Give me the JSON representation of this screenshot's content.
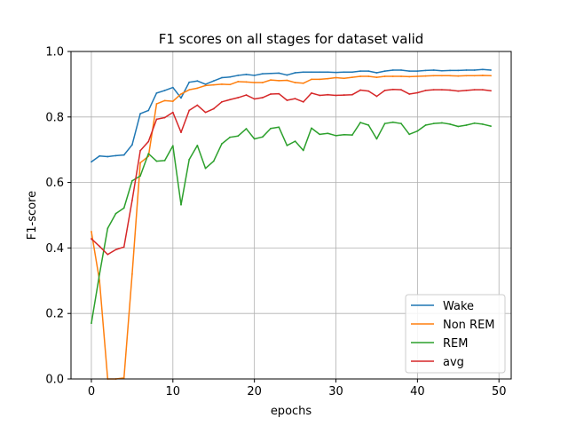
{
  "chart_data": {
    "type": "line",
    "title": "F1 scores on all stages for dataset valid",
    "xlabel": "epochs",
    "ylabel": "F1-score",
    "xlim": [
      -2.5,
      51.5
    ],
    "ylim": [
      0.0,
      1.0
    ],
    "xticks": [
      0,
      10,
      20,
      30,
      40,
      50
    ],
    "xtick_labels": [
      "0",
      "10",
      "20",
      "30",
      "40",
      "50"
    ],
    "yticks": [
      0.0,
      0.2,
      0.4,
      0.6,
      0.8,
      1.0
    ],
    "ytick_labels": [
      "0.0",
      "0.2",
      "0.4",
      "0.6",
      "0.8",
      "1.0"
    ],
    "grid": true,
    "legend_position": "lower-right",
    "x": [
      0,
      1,
      2,
      3,
      4,
      5,
      6,
      7,
      8,
      9,
      10,
      11,
      12,
      13,
      14,
      15,
      16,
      17,
      18,
      19,
      20,
      21,
      22,
      23,
      24,
      25,
      26,
      27,
      28,
      29,
      30,
      31,
      32,
      33,
      34,
      35,
      36,
      37,
      38,
      39,
      40,
      41,
      42,
      43,
      44,
      45,
      46,
      47,
      48,
      49
    ],
    "series": [
      {
        "name": "Wake",
        "color": "#1f77b4",
        "values": [
          0.663,
          0.681,
          0.679,
          0.682,
          0.684,
          0.715,
          0.81,
          0.82,
          0.873,
          0.881,
          0.89,
          0.858,
          0.906,
          0.91,
          0.9,
          0.91,
          0.92,
          0.922,
          0.927,
          0.93,
          0.927,
          0.932,
          0.933,
          0.934,
          0.928,
          0.935,
          0.937,
          0.937,
          0.937,
          0.937,
          0.936,
          0.937,
          0.937,
          0.94,
          0.94,
          0.935,
          0.94,
          0.943,
          0.943,
          0.94,
          0.94,
          0.942,
          0.943,
          0.941,
          0.942,
          0.942,
          0.943,
          0.943,
          0.945,
          0.943
        ]
      },
      {
        "name": "Non REM",
        "color": "#ff7f0e",
        "values": [
          0.45,
          0.3,
          0.0,
          0.0,
          0.003,
          0.32,
          0.66,
          0.68,
          0.84,
          0.85,
          0.848,
          0.87,
          0.883,
          0.888,
          0.896,
          0.898,
          0.9,
          0.899,
          0.908,
          0.907,
          0.905,
          0.905,
          0.913,
          0.911,
          0.912,
          0.905,
          0.903,
          0.915,
          0.915,
          0.917,
          0.92,
          0.918,
          0.921,
          0.924,
          0.924,
          0.921,
          0.924,
          0.924,
          0.924,
          0.923,
          0.924,
          0.925,
          0.926,
          0.926,
          0.926,
          0.925,
          0.926,
          0.926,
          0.927,
          0.926
        ]
      },
      {
        "name": "REM",
        "color": "#2ca02c",
        "values": [
          0.17,
          0.32,
          0.46,
          0.505,
          0.522,
          0.605,
          0.62,
          0.688,
          0.665,
          0.667,
          0.712,
          0.532,
          0.67,
          0.713,
          0.643,
          0.665,
          0.718,
          0.738,
          0.742,
          0.764,
          0.733,
          0.739,
          0.765,
          0.769,
          0.713,
          0.726,
          0.698,
          0.766,
          0.747,
          0.75,
          0.743,
          0.746,
          0.745,
          0.783,
          0.775,
          0.733,
          0.78,
          0.784,
          0.78,
          0.747,
          0.757,
          0.775,
          0.78,
          0.782,
          0.778,
          0.771,
          0.775,
          0.781,
          0.778,
          0.772
        ]
      },
      {
        "name": "avg",
        "color": "#d62728",
        "values": [
          0.428,
          0.405,
          0.38,
          0.395,
          0.403,
          0.545,
          0.697,
          0.725,
          0.793,
          0.798,
          0.814,
          0.753,
          0.82,
          0.836,
          0.814,
          0.825,
          0.846,
          0.853,
          0.859,
          0.867,
          0.855,
          0.859,
          0.87,
          0.871,
          0.851,
          0.856,
          0.846,
          0.873,
          0.866,
          0.868,
          0.866,
          0.867,
          0.868,
          0.882,
          0.879,
          0.863,
          0.881,
          0.884,
          0.883,
          0.87,
          0.874,
          0.881,
          0.883,
          0.883,
          0.882,
          0.879,
          0.881,
          0.883,
          0.883,
          0.88
        ]
      }
    ]
  }
}
